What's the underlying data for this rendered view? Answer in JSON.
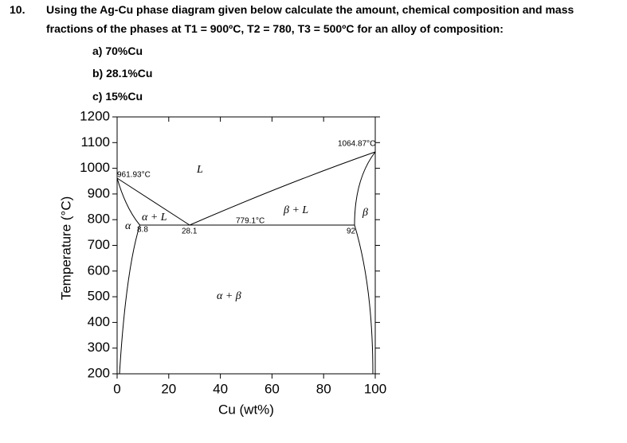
{
  "question": {
    "number": "10.",
    "lines": [
      "Using the Ag-Cu phase diagram given below calculate the amount, chemical composition and mass",
      "fractions of the phases at T1 = 900ºC, T2 = 780, T3 = 500ºC for an alloy of composition:"
    ],
    "items": [
      "a) 70%Cu",
      "b) 28.1%Cu",
      "c) 15%Cu"
    ]
  },
  "chart_data": {
    "type": "phase-diagram",
    "xlabel": "Cu (wt%)",
    "ylabel": "Temperature (°C)",
    "xlim": [
      0,
      100
    ],
    "ylim": [
      200,
      1200
    ],
    "xticks": [
      0,
      20,
      40,
      60,
      80,
      100
    ],
    "yticks": [
      200,
      300,
      400,
      500,
      600,
      700,
      800,
      900,
      1000,
      1100,
      1200
    ],
    "annotations": [
      "L",
      "961.93°C",
      "1064.87°C",
      "α + L",
      "α",
      "8.8",
      "28.1",
      "779.1°C",
      "β + L",
      "β",
      "92",
      "α + β"
    ]
  }
}
